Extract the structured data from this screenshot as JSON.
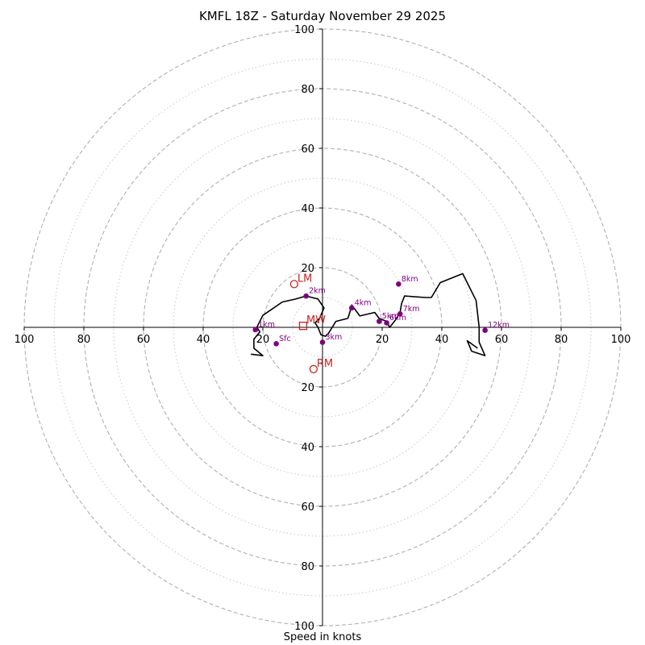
{
  "chart_data": {
    "type": "hodograph",
    "title": "KMFL 18Z - Saturday November 29 2025",
    "xlabel": "Speed in knots",
    "units": "knots",
    "range": [
      -100,
      100
    ],
    "ring_major": [
      20,
      40,
      60,
      80,
      100
    ],
    "ring_minor": [
      10,
      30,
      50,
      70,
      90
    ],
    "x_tick_labels": [
      "100",
      "80",
      "60",
      "40",
      "20",
      "20",
      "40",
      "60",
      "80",
      "100"
    ],
    "y_tick_labels": [
      "100",
      "80",
      "60",
      "40",
      "20",
      "20",
      "40",
      "60",
      "80",
      "100"
    ],
    "x_tick_values": [
      -100,
      -80,
      -60,
      -40,
      -20,
      20,
      40,
      60,
      80,
      100
    ],
    "y_tick_values": [
      100,
      80,
      60,
      40,
      20,
      -20,
      -40,
      -60,
      -80,
      -100
    ],
    "trace": [
      [
        -24,
        -9
      ],
      [
        -20,
        -9.5
      ],
      [
        -23,
        -7
      ],
      [
        -23,
        -4
      ],
      [
        -21,
        -1.5
      ],
      [
        -22,
        0
      ],
      [
        -20,
        4
      ],
      [
        -13.5,
        8.5
      ],
      [
        -9,
        9.5
      ],
      [
        -5.5,
        10.5
      ],
      [
        -1.5,
        9.5
      ],
      [
        0.5,
        6.5
      ],
      [
        -1,
        3
      ],
      [
        -2.5,
        1.5
      ],
      [
        -1.5,
        0
      ],
      [
        -0.5,
        -2.5
      ],
      [
        1,
        -3
      ],
      [
        2,
        -2
      ],
      [
        4.5,
        2
      ],
      [
        8.5,
        3
      ],
      [
        9,
        4.5
      ],
      [
        9.8,
        7.5
      ],
      [
        12.5,
        3.8
      ],
      [
        17.5,
        5
      ],
      [
        19,
        3
      ],
      [
        21.5,
        2
      ],
      [
        22.5,
        0
      ],
      [
        24.5,
        2.5
      ],
      [
        26,
        5
      ],
      [
        26.5,
        8
      ],
      [
        27.5,
        10.5
      ],
      [
        34.5,
        10
      ],
      [
        36.5,
        10
      ],
      [
        39.5,
        15
      ],
      [
        47,
        18
      ],
      [
        51.5,
        9
      ],
      [
        52.5,
        0
      ],
      [
        52.5,
        -5
      ],
      [
        54.5,
        -9.5
      ],
      [
        50,
        -8
      ],
      [
        48.5,
        -4.5
      ],
      [
        52,
        -7
      ]
    ],
    "height_markers": [
      {
        "label": "Sfc",
        "u": -15.5,
        "v": -5.5
      },
      {
        "label": "1km",
        "u": -22.5,
        "v": -0.8
      },
      {
        "label": "2km",
        "u": -5.5,
        "v": 10.5
      },
      {
        "label": "3km",
        "u": 0,
        "v": -5
      },
      {
        "label": "4km",
        "u": 9.8,
        "v": 6.5
      },
      {
        "label": "5km",
        "u": 19,
        "v": 2
      },
      {
        "label": "6km",
        "u": 21.5,
        "v": 1.5
      },
      {
        "label": "7km",
        "u": 26,
        "v": 4.5
      },
      {
        "label": "8km",
        "u": 25.5,
        "v": 14.5
      },
      {
        "label": "12km",
        "u": 54.5,
        "v": -1
      }
    ],
    "storm_motion": [
      {
        "label": "LM",
        "u": -9.5,
        "v": 14.5,
        "marker": "circle"
      },
      {
        "label": "RM",
        "u": -3,
        "v": -14,
        "marker": "circle"
      },
      {
        "label": "MW",
        "u": -6.5,
        "v": 0.5,
        "marker": "square"
      }
    ],
    "colors": {
      "trace": "#000000",
      "height_marker": "#800080",
      "storm_motion": "#cc2222",
      "ring": "#b0b0b0",
      "axis": "#000000"
    }
  }
}
